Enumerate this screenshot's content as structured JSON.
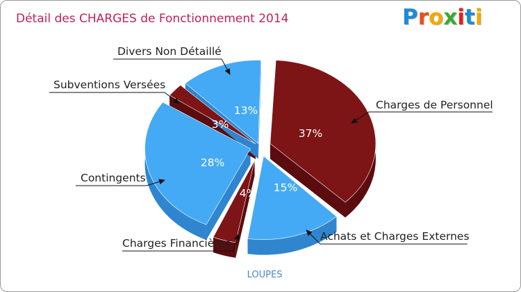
{
  "header": {
    "title": "Détail des CHARGES de Fonctionnement 2014",
    "logo_text": "Proxiti",
    "logo_colors": [
      "#1e8ad6",
      "#e94e1b",
      "#f2a900",
      "#3aaa35",
      "#e2231a",
      "#1e8ad6",
      "#f2a900"
    ]
  },
  "footer": {
    "commune": "LOUPES"
  },
  "chart_data": {
    "type": "pie",
    "title": "Détail des CHARGES de Fonctionnement 2014",
    "unit": "%",
    "slices": [
      {
        "name": "Charges de Personnel",
        "value": 37,
        "label": "37%",
        "color": "#7d1416",
        "side_color": "#5b0c0e"
      },
      {
        "name": "Achats et Charges Externes",
        "value": 15,
        "label": "15%",
        "color": "#44aaf5",
        "side_color": "#2f86cf"
      },
      {
        "name": "Charges Financières",
        "value": 4,
        "label": "4%",
        "color": "#7d1416",
        "side_color": "#5b0c0e"
      },
      {
        "name": "Contingents",
        "value": 28,
        "label": "28%",
        "color": "#44aaf5",
        "side_color": "#2f86cf"
      },
      {
        "name": "Subventions Versées",
        "value": 3,
        "label": "3%",
        "color": "#7d1416",
        "side_color": "#5b0c0e"
      },
      {
        "name": "Divers Non Détaillé",
        "value": 13,
        "label": "13%",
        "color": "#44aaf5",
        "side_color": "#2f86cf"
      }
    ]
  }
}
